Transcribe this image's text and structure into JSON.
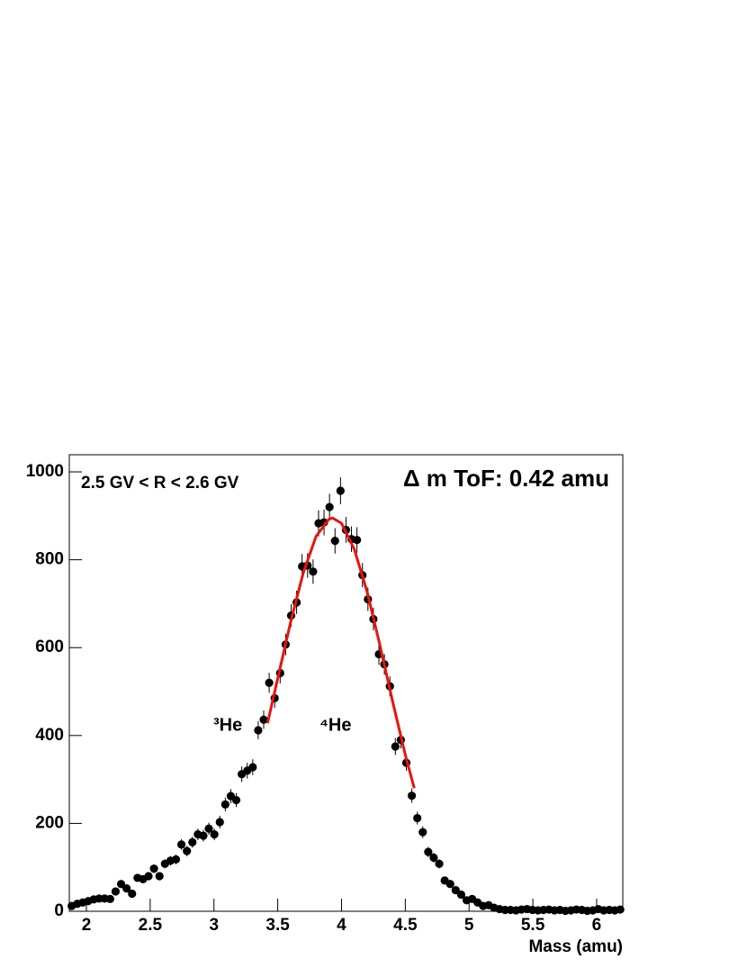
{
  "chart_data": {
    "type": "scatter",
    "subtitle": "2.5 GV < R < 2.6 GV",
    "title": "Δ m ToF: 0.42 amu",
    "annotations": [
      "³He",
      "⁴He"
    ],
    "x_label": "Mass (amu)",
    "xlim": [
      1.866,
      6.205
    ],
    "ylim": [
      0,
      1039
    ],
    "xticks": [
      2,
      2.5,
      3,
      3.5,
      4,
      4.5,
      5,
      5.5,
      6
    ],
    "yticks": [
      0,
      200,
      400,
      600,
      800,
      1000
    ],
    "series": [
      {
        "color": "#000000",
        "x": [
          1.885,
          1.928,
          1.971,
          2.014,
          2.057,
          2.1,
          2.143,
          2.186,
          2.229,
          2.272,
          2.315,
          2.358,
          2.401,
          2.444,
          2.487,
          2.53,
          2.573,
          2.616,
          2.659,
          2.702,
          2.745,
          2.788,
          2.831,
          2.874,
          2.917,
          2.96,
          3.003,
          3.046,
          3.089,
          3.132,
          3.175,
          3.218,
          3.261,
          3.304,
          3.347,
          3.39,
          3.433,
          3.476,
          3.519,
          3.562,
          3.605,
          3.648,
          3.691,
          3.734,
          3.777,
          3.82,
          3.863,
          3.906,
          3.949,
          3.992,
          4.035,
          4.078,
          4.121,
          4.164,
          4.207,
          4.25,
          4.293,
          4.336,
          4.379,
          4.422,
          4.465,
          4.508,
          4.551,
          4.594,
          4.637,
          4.68,
          4.723,
          4.766,
          4.809,
          4.852,
          4.895,
          4.938,
          4.981,
          5.024,
          5.067,
          5.11,
          5.153,
          5.196,
          5.239,
          5.282,
          5.325,
          5.368,
          5.411,
          5.454,
          5.497,
          5.54,
          5.583,
          5.626,
          5.669,
          5.712,
          5.755,
          5.798,
          5.841,
          5.884,
          5.927,
          5.97,
          6.013,
          6.056,
          6.099,
          6.142,
          6.185
        ],
        "values": [
          12,
          17,
          20,
          23,
          27,
          29,
          29,
          28,
          45,
          62,
          52,
          40,
          76,
          73,
          80,
          97,
          80,
          108,
          115,
          118,
          152,
          137,
          157,
          175,
          172,
          188,
          175,
          203,
          243,
          262,
          253,
          312,
          320,
          328,
          412,
          436,
          520,
          485,
          542,
          607,
          673,
          703,
          785,
          787,
          773,
          883,
          885,
          920,
          843,
          957,
          868,
          847,
          845,
          765,
          710,
          665,
          585,
          562,
          512,
          375,
          390,
          338,
          263,
          212,
          180,
          135,
          122,
          108,
          70,
          62,
          48,
          38,
          25,
          28,
          20,
          12,
          14,
          8,
          5,
          3,
          3,
          2,
          4,
          5,
          3,
          2,
          3,
          4,
          2,
          3,
          1,
          2,
          4,
          3,
          1,
          2,
          5,
          2,
          3,
          2,
          4
        ],
        "errors": [
          3.5,
          4.1,
          4.5,
          4.8,
          5.2,
          5.4,
          5.4,
          5.3,
          6.7,
          7.9,
          7.2,
          6.3,
          8.7,
          8.5,
          8.9,
          9.8,
          8.9,
          10.4,
          10.7,
          10.9,
          12.3,
          11.7,
          12.5,
          13.2,
          13.1,
          13.7,
          13.2,
          14.2,
          15.6,
          16.2,
          15.9,
          17.7,
          17.9,
          18.1,
          20.3,
          20.9,
          22.8,
          22,
          23.3,
          24.6,
          25.9,
          26.5,
          28,
          28.1,
          27.8,
          29.7,
          29.7,
          30.3,
          29,
          30.9,
          29.5,
          29.1,
          29.1,
          27.7,
          26.6,
          25.8,
          24.2,
          23.7,
          22.6,
          19.4,
          19.7,
          18.4,
          16.2,
          14.6,
          13.4,
          11.6,
          11,
          10.4,
          8.4,
          7.9,
          6.9,
          6.2,
          5,
          5.3,
          4.5,
          3.5,
          3.7,
          2.8,
          2.2,
          1.7,
          1.7,
          1.4,
          2,
          2.2,
          1.7,
          1.4,
          1.7,
          2,
          1.4,
          1.7,
          1,
          1.4,
          2,
          1.7,
          1,
          1.4,
          2.2,
          1.4,
          1.7,
          1.4,
          2
        ]
      },
      {
        "type": "line",
        "color": "#e8140c",
        "x": [
          3.42,
          3.5,
          3.6,
          3.7,
          3.8,
          3.9,
          3.93,
          4.0,
          4.1,
          4.2,
          4.3,
          4.4,
          4.5,
          4.57
        ],
        "values": [
          428,
          530,
          657,
          770,
          853,
          892,
          895,
          883,
          824,
          728,
          607,
          478,
          356,
          280
        ]
      }
    ]
  }
}
